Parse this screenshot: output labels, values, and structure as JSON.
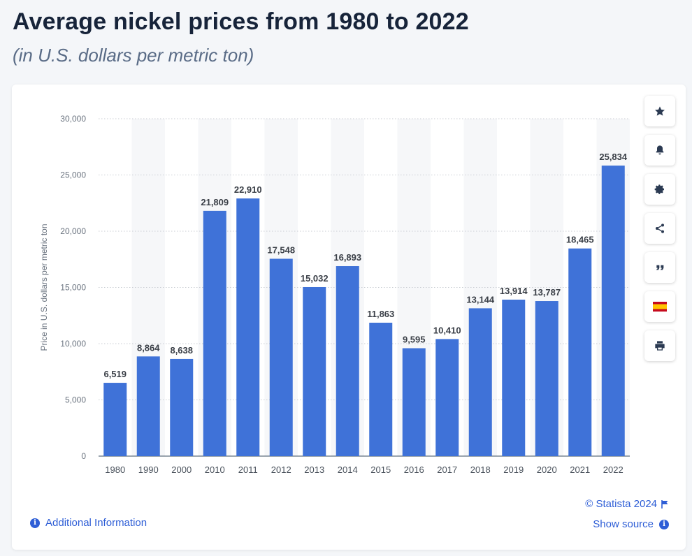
{
  "header": {
    "title": "Average nickel prices from 1980 to 2022",
    "subtitle": "(in U.S. dollars per metric ton)"
  },
  "colors": {
    "bar": "#3f72d8",
    "band": "#f6f7f9",
    "accent": "#2e5ed6"
  },
  "chart_data": {
    "type": "bar",
    "categories": [
      "1980",
      "1990",
      "2000",
      "2010",
      "2011",
      "2012",
      "2013",
      "2014",
      "2015",
      "2016",
      "2017",
      "2018",
      "2019",
      "2020",
      "2021",
      "2022"
    ],
    "values": [
      6519,
      8864,
      8638,
      21809,
      22910,
      17548,
      15032,
      16893,
      11863,
      9595,
      10410,
      13144,
      13914,
      13787,
      18465,
      25834
    ],
    "value_labels": [
      "6,519",
      "8,864",
      "8,638",
      "21,809",
      "22,910",
      "17,548",
      "15,032",
      "16,893",
      "11,863",
      "9,595",
      "10,410",
      "13,144",
      "13,914",
      "13,787",
      "18,465",
      "25,834"
    ],
    "ylabel": "Price in U.S. dollars per metric ton",
    "xlabel": "",
    "ylim": [
      0,
      30000
    ],
    "yticks": [
      0,
      5000,
      10000,
      15000,
      20000,
      25000,
      30000
    ],
    "ytick_labels": [
      "0",
      "5,000",
      "10,000",
      "15,000",
      "20,000",
      "25,000",
      "30,000"
    ],
    "grid": true,
    "legend": "none"
  },
  "toolbar": {
    "items": [
      {
        "name": "star-icon"
      },
      {
        "name": "bell-icon"
      },
      {
        "name": "gear-icon"
      },
      {
        "name": "share-icon"
      },
      {
        "name": "quote-icon"
      },
      {
        "name": "spain-flag-icon"
      },
      {
        "name": "print-icon"
      }
    ]
  },
  "footer": {
    "additional_info": "Additional Information",
    "credit": "© Statista 2024",
    "show_source": "Show source"
  }
}
